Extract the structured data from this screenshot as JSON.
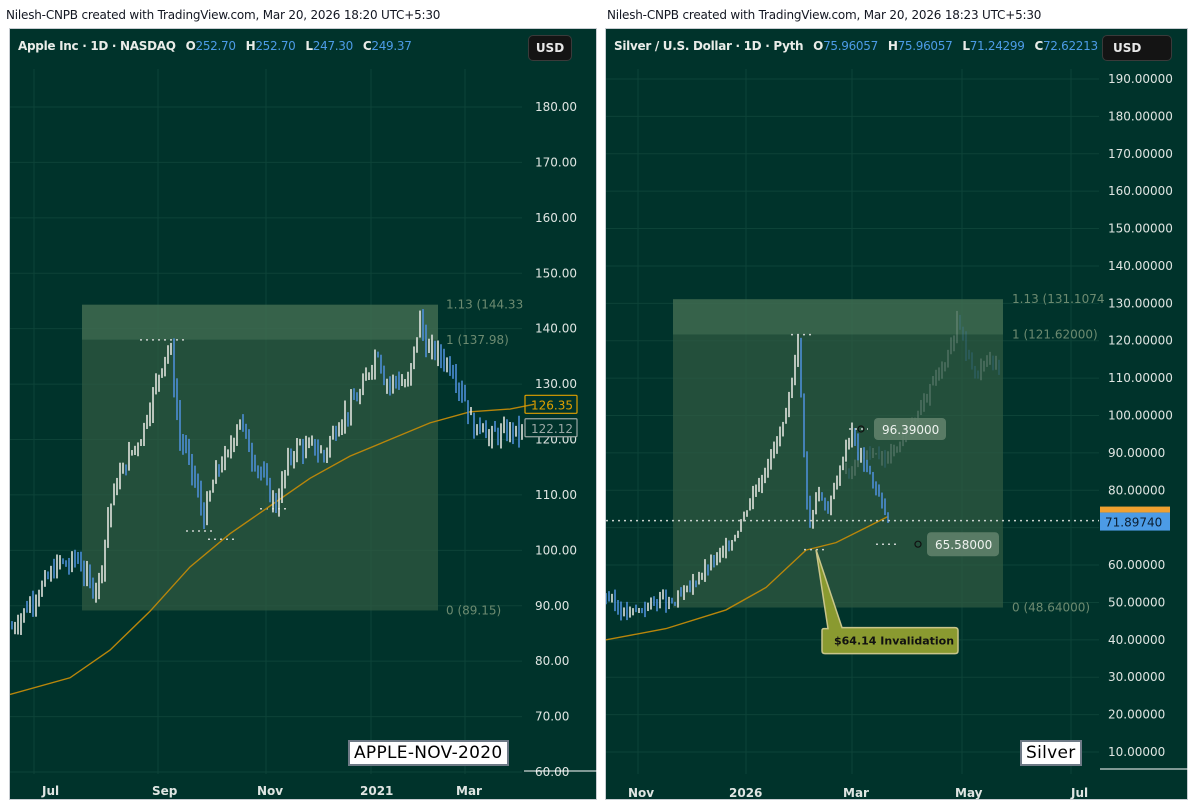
{
  "panels": [
    {
      "credit": "Nilesh-CNPB created with TradingView.com, Mar 20, 2026 18:20 UTC+5:30",
      "legend": {
        "symbol": "Apple Inc · 1D · NASDAQ",
        "o_label": "O",
        "o": "252.70",
        "h_label": "H",
        "h": "252.70",
        "l_label": "L",
        "l": "247.30",
        "c_label": "C",
        "c": "249.37"
      },
      "currency": "USD",
      "stamp": "APPLE-NOV-2020",
      "price_axis": [
        "180.00",
        "170.00",
        "160.00",
        "150.00",
        "140.00",
        "130.00",
        "120.00",
        "110.00",
        "100.00",
        "90.00",
        "80.00",
        "70.00",
        "60.00"
      ],
      "time_axis": [
        "Jul",
        "Sep",
        "Nov",
        "2021",
        "Mar"
      ],
      "fib_labels": [
        "1.13 (144.33",
        "1 (137.98)",
        "0 (89.15)"
      ],
      "price_tags": [
        {
          "value": "126.35",
          "kind": "ma",
          "color": "#e0a000"
        },
        {
          "value": "122.12",
          "kind": "last",
          "color": "#9aa7a4"
        }
      ]
    },
    {
      "credit": "Nilesh-CNPB created with TradingView.com, Mar 20, 2026 18:23 UTC+5:30",
      "legend": {
        "symbol": "Silver / U.S. Dollar · 1D · Pyth",
        "o_label": "O",
        "o": "75.96057",
        "h_label": "H",
        "h": "75.96057",
        "l_label": "L",
        "l": "71.24299",
        "c_label": "C",
        "c": "72.62213"
      },
      "currency": "USD",
      "stamp": "Silver",
      "price_axis": [
        "190.00000",
        "180.00000",
        "170.00000",
        "160.00000",
        "150.00000",
        "140.00000",
        "130.00000",
        "120.00000",
        "110.00000",
        "100.00000",
        "90.00000",
        "80.00000",
        "70.00000",
        "60.00000",
        "50.00000",
        "40.00000",
        "30.00000",
        "20.00000",
        "10.00000"
      ],
      "time_axis": [
        "Nov",
        "2026",
        "Mar",
        "May",
        "Jul"
      ],
      "fib_labels": [
        "1.13 (131.1074",
        "1 (121.62000)",
        "0 (48.64000)"
      ],
      "price_tags": [
        {
          "value": "71.89740",
          "kind": "last",
          "color": "#4c9be6"
        }
      ],
      "annotations": {
        "high_label": "96.39000",
        "low_label": "65.58000",
        "callout": "$64.14 Invalidation"
      }
    }
  ],
  "colors": {
    "background": "#00332b",
    "grid": "#0d4338",
    "up_bar": "#dfe3dd",
    "down_bar": "#4c8ed6",
    "moving_average": "#b8860b",
    "fib_zone": "#2f5a42",
    "fib_top_zone": "#3f6b50",
    "callout_fill": "#8a9a30",
    "callout_border": "#c9c58a"
  },
  "chart_data": [
    {
      "type": "ohlc",
      "title": "Apple Inc · 1D · NASDAQ",
      "xlabel": "",
      "ylabel": "USD",
      "ylim": [
        60,
        190
      ],
      "x_ticks": [
        "Jul",
        "Sep",
        "Nov",
        "2021",
        "Mar"
      ],
      "annotations": [
        "Fib 0 (89.15)",
        "Fib 1 (137.98)",
        "Fib 1.13 (144.33)",
        "MA 126.35",
        "Last 122.12",
        "APPLE-NOV-2020"
      ],
      "series": [
        {
          "name": "AAPL close (approx)",
          "points": [
            [
              0,
              86
            ],
            [
              8,
              88
            ],
            [
              16,
              90
            ],
            [
              24,
              92
            ],
            [
              32,
              94
            ],
            [
              40,
              96
            ],
            [
              48,
              98
            ],
            [
              56,
              97
            ],
            [
              64,
              99
            ],
            [
              72,
              96
            ],
            [
              80,
              93
            ],
            [
              88,
              95
            ],
            [
              96,
              106
            ],
            [
              104,
              112
            ],
            [
              112,
              115
            ],
            [
              120,
              118
            ],
            [
              128,
              120
            ],
            [
              136,
              125
            ],
            [
              144,
              130
            ],
            [
              152,
              135
            ],
            [
              158,
              137
            ],
            [
              162,
              130
            ],
            [
              168,
              120
            ],
            [
              174,
              118
            ],
            [
              180,
              114
            ],
            [
              186,
              110
            ],
            [
              192,
              106
            ],
            [
              198,
              110
            ],
            [
              204,
              114
            ],
            [
              210,
              116
            ],
            [
              216,
              117
            ],
            [
              222,
              121
            ],
            [
              228,
              124
            ],
            [
              234,
              120
            ],
            [
              240,
              117
            ],
            [
              246,
              115
            ],
            [
              252,
              113
            ],
            [
              258,
              110
            ],
            [
              264,
              108
            ],
            [
              270,
              112
            ],
            [
              276,
              116
            ],
            [
              282,
              118
            ],
            [
              288,
              119
            ],
            [
              294,
              118
            ],
            [
              300,
              119
            ],
            [
              306,
              118
            ],
            [
              312,
              117
            ],
            [
              318,
              120
            ],
            [
              324,
              122
            ],
            [
              330,
              124
            ],
            [
              336,
              125
            ],
            [
              342,
              127
            ],
            [
              348,
              128
            ],
            [
              354,
              131
            ],
            [
              360,
              134
            ],
            [
              366,
              136
            ],
            [
              372,
              131
            ],
            [
              378,
              130
            ],
            [
              384,
              131
            ],
            [
              390,
              130
            ],
            [
              396,
              130
            ],
            [
              402,
              136
            ],
            [
              408,
              142
            ],
            [
              412,
              138
            ],
            [
              416,
              136
            ],
            [
              422,
              136
            ],
            [
              428,
              135
            ],
            [
              434,
              134
            ],
            [
              440,
              133
            ],
            [
              446,
              130
            ],
            [
              452,
              128
            ],
            [
              458,
              124
            ],
            [
              464,
              121
            ],
            [
              470,
              124
            ],
            [
              476,
              120
            ],
            [
              482,
              121
            ],
            [
              488,
              121
            ],
            [
              494,
              121
            ],
            [
              500,
              122
            ],
            [
              506,
              121
            ],
            [
              512,
              122
            ]
          ]
        },
        {
          "name": "Moving average",
          "points": [
            [
              0,
              74
            ],
            [
              60,
              77
            ],
            [
              100,
              82
            ],
            [
              140,
              89
            ],
            [
              180,
              97
            ],
            [
              220,
              103
            ],
            [
              260,
              108
            ],
            [
              300,
              113
            ],
            [
              340,
              117
            ],
            [
              380,
              120
            ],
            [
              420,
              123
            ],
            [
              460,
              125
            ],
            [
              500,
              125.5
            ],
            [
              524,
              126.35
            ]
          ]
        }
      ]
    },
    {
      "type": "ohlc",
      "title": "Silver / U.S. Dollar · 1D · Pyth",
      "xlabel": "",
      "ylabel": "USD",
      "ylim": [
        0,
        200
      ],
      "x_ticks": [
        "Nov",
        "2026",
        "Mar",
        "May",
        "Jul"
      ],
      "annotations": [
        "Fib 0 (48.64)",
        "Fib 1 (121.62)",
        "Fib 1.13 (131.1074)",
        "Swing high 96.39",
        "Swing low 65.58",
        "$64.14 Invalidation",
        "Last 71.8974",
        "Silver"
      ],
      "series": [
        {
          "name": "XAGUSD close (approx)",
          "points": [
            [
              0,
              52
            ],
            [
              10,
              49
            ],
            [
              20,
              47
            ],
            [
              30,
              48
            ],
            [
              40,
              49
            ],
            [
              50,
              51
            ],
            [
              60,
              50
            ],
            [
              68,
              50
            ],
            [
              76,
              52
            ],
            [
              84,
              54
            ],
            [
              92,
              57
            ],
            [
              100,
              59
            ],
            [
              108,
              61
            ],
            [
              116,
              63
            ],
            [
              124,
              66
            ],
            [
              132,
              70
            ],
            [
              140,
              75
            ],
            [
              148,
              80
            ],
            [
              156,
              84
            ],
            [
              164,
              89
            ],
            [
              172,
              94
            ],
            [
              180,
              99
            ],
            [
              186,
              108
            ],
            [
              190,
              118
            ],
            [
              192,
              121
            ],
            [
              196,
              100
            ],
            [
              200,
              80
            ],
            [
              204,
              70
            ],
            [
              208,
              76
            ],
            [
              212,
              80
            ],
            [
              216,
              78
            ],
            [
              222,
              74
            ],
            [
              228,
              80
            ],
            [
              234,
              86
            ],
            [
              240,
              92
            ],
            [
              246,
              96
            ],
            [
              252,
              90
            ],
            [
              258,
              88
            ],
            [
              264,
              84
            ],
            [
              270,
              80
            ],
            [
              276,
              76
            ],
            [
              282,
              72
            ]
          ]
        },
        {
          "name": "Projection (ghost)",
          "points": [
            [
              240,
              85
            ],
            [
              260,
              90
            ],
            [
              280,
              88
            ],
            [
              300,
              95
            ],
            [
              320,
              105
            ],
            [
              340,
              115
            ],
            [
              352,
              126
            ],
            [
              362,
              115
            ],
            [
              372,
              112
            ],
            [
              384,
              116
            ],
            [
              394,
              112
            ]
          ]
        },
        {
          "name": "Moving average",
          "points": [
            [
              0,
              40
            ],
            [
              60,
              43
            ],
            [
              120,
              48
            ],
            [
              160,
              54
            ],
            [
              200,
              64
            ],
            [
              230,
              66
            ],
            [
              260,
              70
            ],
            [
              282,
              73
            ]
          ]
        }
      ]
    }
  ]
}
